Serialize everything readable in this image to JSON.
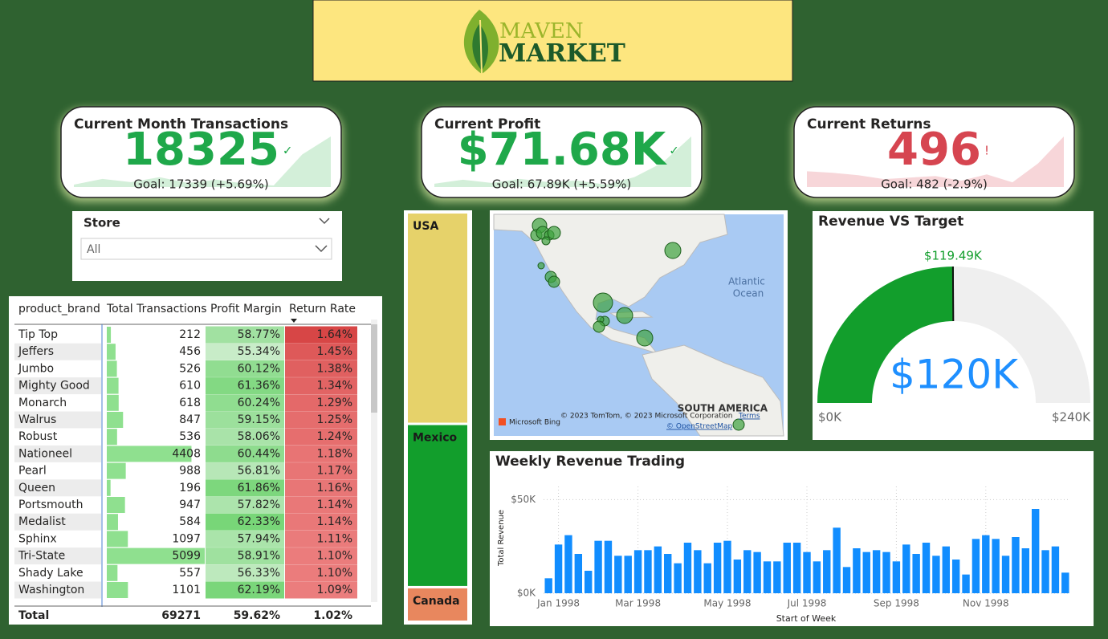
{
  "header": {
    "logo_line1": "MAVEN",
    "logo_line2": "MARKET"
  },
  "kpis": [
    {
      "title": "Current Month Transactions",
      "value": "18325",
      "status": "✓",
      "goal": "Goal: 17339 (+5.69%)",
      "color": "#1fa84a",
      "trend_color": "#d3efd9",
      "trend": [
        3,
        10,
        6,
        12,
        5,
        9,
        4,
        2,
        40,
        62
      ]
    },
    {
      "title": "Current Profit",
      "value": "$71.68K",
      "status": "✓",
      "goal": "Goal: 67.89K (+5.59%)",
      "color": "#1fa84a",
      "trend_color": "#d3efd9",
      "trend": [
        4,
        9,
        5,
        10,
        6,
        8,
        3,
        12,
        30,
        62
      ]
    },
    {
      "title": "Current Returns",
      "value": "496",
      "status": "!",
      "goal": "Goal: 482 (-2.9%)",
      "color": "#d64550",
      "trend_color": "#f7d6d9",
      "trend": [
        20,
        18,
        15,
        10,
        12,
        14,
        8,
        16,
        6,
        30,
        64
      ]
    }
  ],
  "store_slicer": {
    "title": "Store",
    "selection": "All"
  },
  "table": {
    "columns": [
      "product_brand",
      "Total Transactions",
      "Profit Margin",
      "Return Rate"
    ],
    "rows": [
      [
        "Tip Top",
        212,
        "58.77%",
        "1.64%"
      ],
      [
        "Jeffers",
        456,
        "55.34%",
        "1.45%"
      ],
      [
        "Jumbo",
        526,
        "60.12%",
        "1.38%"
      ],
      [
        "Mighty Good",
        610,
        "61.36%",
        "1.34%"
      ],
      [
        "Monarch",
        618,
        "60.24%",
        "1.29%"
      ],
      [
        "Walrus",
        847,
        "59.15%",
        "1.25%"
      ],
      [
        "Robust",
        536,
        "58.06%",
        "1.24%"
      ],
      [
        "Nationeel",
        4408,
        "60.44%",
        "1.18%"
      ],
      [
        "Pearl",
        988,
        "56.81%",
        "1.17%"
      ],
      [
        "Queen",
        196,
        "61.86%",
        "1.16%"
      ],
      [
        "Portsmouth",
        947,
        "57.82%",
        "1.14%"
      ],
      [
        "Medalist",
        584,
        "62.33%",
        "1.14%"
      ],
      [
        "Sphinx",
        1097,
        "57.94%",
        "1.11%"
      ],
      [
        "Tri-State",
        5099,
        "58.91%",
        "1.10%"
      ],
      [
        "Shady Lake",
        557,
        "56.33%",
        "1.10%"
      ],
      [
        "Washington",
        1101,
        "62.19%",
        "1.09%"
      ]
    ],
    "total": [
      "Total",
      69271,
      "59.62%",
      "1.02%"
    ]
  },
  "map": {
    "ocean_label": [
      "Atlantic",
      "Ocean"
    ],
    "continent_label": "SOUTH AMERICA",
    "attribution": "© 2023 TomTom, © 2023 Microsoft Corporation",
    "terms": "Terms",
    "osm": "© OpenStreetMap",
    "bing": "Microsoft Bing"
  },
  "chart_data": [
    {
      "type": "bar",
      "title": "Weekly Revenue Trading",
      "y_label": "Total Revenue",
      "x_label": "Start of Week",
      "color": "#118dff",
      "categories": [
        null,
        "Jan 1998",
        null,
        null,
        null,
        null,
        null,
        null,
        null,
        "Mar 1998",
        null,
        null,
        null,
        null,
        null,
        null,
        null,
        null,
        "May 1998",
        null,
        null,
        null,
        null,
        null,
        null,
        null,
        "Jul 1998",
        null,
        null,
        null,
        null,
        null,
        null,
        null,
        null,
        "Sep 1998",
        null,
        null,
        null,
        null,
        null,
        null,
        null,
        null,
        "Nov 1998",
        null,
        null,
        null,
        null,
        null,
        null,
        null,
        null
      ],
      "values": [
        8000,
        26000,
        31000,
        21000,
        12000,
        28000,
        28000,
        20000,
        20000,
        23000,
        23000,
        25000,
        21000,
        16000,
        27000,
        23000,
        16000,
        27000,
        28000,
        18000,
        23000,
        22000,
        17000,
        17000,
        27000,
        27000,
        22000,
        17000,
        23000,
        35000,
        14000,
        24000,
        22000,
        23000,
        22000,
        17000,
        26000,
        21000,
        27000,
        20000,
        25000,
        18000,
        10000,
        29000,
        31000,
        29000,
        20000,
        30000,
        24000,
        45000,
        23000,
        25000,
        11000
      ],
      "ylim": [
        0,
        57000
      ],
      "yticks": [
        {
          "value": 0,
          "label": "$0K"
        },
        {
          "value": 50000,
          "label": "$50K"
        }
      ],
      "grid": true
    },
    {
      "type": "treemap",
      "categories": [
        "USA",
        "Mexico",
        "Canada"
      ],
      "values": [
        52,
        40,
        8
      ],
      "colors": [
        "#e6d26a",
        "#129e2c",
        "#e8875e"
      ]
    },
    {
      "type": "gauge",
      "title": "Revenue VS Target",
      "value": 120000,
      "value_label": "$120K",
      "target": 119490,
      "target_label": "$119.49K",
      "ylim": [
        0,
        240000
      ],
      "yticks": [
        {
          "value": 0,
          "label": "$0K"
        },
        {
          "value": 240000,
          "label": "$240K"
        }
      ],
      "color": "#129e2c",
      "track_color": "#efefef",
      "label_color": "#1e8fff"
    }
  ]
}
